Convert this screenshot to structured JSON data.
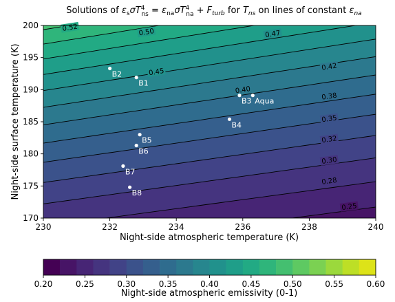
{
  "chart_data": {
    "type": "contour",
    "title": {
      "prefix": "Solutions of ",
      "suffix": " for ",
      "tail": " on lines of constant "
    },
    "xlabel": "Night-side atmospheric temperature (K)",
    "ylabel": "Night-side surface temperature (K)",
    "xlim": [
      230,
      240
    ],
    "ylim": [
      170,
      200
    ],
    "xticks": [
      230,
      232,
      234,
      236,
      238,
      240
    ],
    "yticks": [
      170,
      175,
      180,
      185,
      190,
      195,
      200
    ],
    "colorbar": {
      "label": "Night-side atmospheric emissivity (0-1)",
      "range": [
        0.2,
        0.6
      ],
      "ticks": [
        "0.20",
        "0.25",
        "0.30",
        "0.35",
        "0.40",
        "0.45",
        "0.50",
        "0.55",
        "0.60"
      ],
      "level_step": 0.025,
      "colors": [
        "#440154",
        "#471466",
        "#472575",
        "#45347f",
        "#414387",
        "#3b528b",
        "#355f8d",
        "#2f6c8e",
        "#2c798e",
        "#27868e",
        "#21918c",
        "#1f9e89",
        "#22aa84",
        "#2fb57b",
        "#44bf70",
        "#5ec962",
        "#7bd152",
        "#9bd93c",
        "#bddf26",
        "#dde318"
      ]
    },
    "contour_labels": [
      {
        "text": "0.52",
        "at": [
          230.8,
          199.7
        ]
      },
      {
        "text": "0.50",
        "at": [
          233.1,
          199.0
        ]
      },
      {
        "text": "0.47",
        "at": [
          236.9,
          198.7
        ]
      },
      {
        "text": "0.45",
        "at": [
          233.4,
          192.8
        ]
      },
      {
        "text": "0.42",
        "at": [
          238.6,
          193.6
        ]
      },
      {
        "text": "0.40",
        "at": [
          236.0,
          190.0
        ]
      },
      {
        "text": "0.38",
        "at": [
          238.6,
          189.0
        ]
      },
      {
        "text": "0.35",
        "at": [
          238.6,
          185.5
        ]
      },
      {
        "text": "0.32",
        "at": [
          238.6,
          182.3
        ]
      },
      {
        "text": "0.30",
        "at": [
          238.6,
          179.0
        ]
      },
      {
        "text": "0.28",
        "at": [
          238.6,
          175.8
        ]
      },
      {
        "text": "0.25",
        "at": [
          239.2,
          171.8
        ]
      }
    ],
    "points": [
      {
        "name": "B2",
        "x": 232.0,
        "y": 193.3
      },
      {
        "name": "B1",
        "x": 232.8,
        "y": 191.9
      },
      {
        "name": "B3",
        "x": 235.9,
        "y": 189.1
      },
      {
        "name": "Aqua",
        "x": 236.3,
        "y": 189.1
      },
      {
        "name": "B4",
        "x": 235.6,
        "y": 185.4
      },
      {
        "name": "B5",
        "x": 232.9,
        "y": 183.0
      },
      {
        "name": "B6",
        "x": 232.8,
        "y": 181.3
      },
      {
        "name": "B7",
        "x": 232.4,
        "y": 178.1
      },
      {
        "name": "B8",
        "x": 232.6,
        "y": 174.8
      }
    ]
  }
}
